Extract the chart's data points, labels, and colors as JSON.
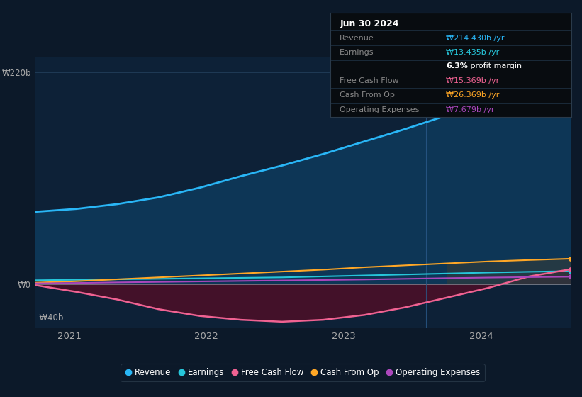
{
  "background_color": "#0c1929",
  "plot_bg_color": "#0d2137",
  "title": "Jun 30 2024",
  "ylabel_top": "₩220b",
  "ylabel_zero": "₩0",
  "ylabel_bottom": "-₩40b",
  "x_labels": [
    "2021",
    "2022",
    "2023",
    "2024"
  ],
  "x_ticks": [
    2021,
    2022,
    2023,
    2024
  ],
  "ylim": [
    -45,
    235
  ],
  "xlim": [
    2020.75,
    2024.65
  ],
  "colors": {
    "revenue": "#29b6f6",
    "earnings": "#26c6da",
    "free_cash_flow": "#f06292",
    "cash_from_op": "#ffa726",
    "operating_expenses": "#ab47bc"
  },
  "legend": [
    {
      "label": "Revenue",
      "color": "#29b6f6"
    },
    {
      "label": "Earnings",
      "color": "#26c6da"
    },
    {
      "label": "Free Cash Flow",
      "color": "#f06292"
    },
    {
      "label": "Cash From Op",
      "color": "#ffa726"
    },
    {
      "label": "Operating Expenses",
      "color": "#ab47bc"
    }
  ],
  "tooltip": {
    "date": "Jun 30 2024",
    "rows": [
      {
        "label": "Revenue",
        "value": "₩214.430b /yr",
        "color": "#29b6f6",
        "type": "normal"
      },
      {
        "label": "Earnings",
        "value": "₩13.435b /yr",
        "color": "#26c6da",
        "type": "normal"
      },
      {
        "label": "",
        "value": "6.3% profit margin",
        "color": "white",
        "type": "margin"
      },
      {
        "label": "Free Cash Flow",
        "value": "₩15.369b /yr",
        "color": "#f06292",
        "type": "normal"
      },
      {
        "label": "Cash From Op",
        "value": "₩26.369b /yr",
        "color": "#ffa726",
        "type": "normal"
      },
      {
        "label": "Operating Expenses",
        "value": "₩7.679b /yr",
        "color": "#ab47bc",
        "type": "normal"
      }
    ]
  },
  "revenue": [
    75,
    78,
    83,
    90,
    100,
    112,
    123,
    135,
    148,
    161,
    175,
    190,
    205,
    214.43
  ],
  "earnings": [
    4,
    4.5,
    5,
    5.5,
    6,
    6.5,
    7,
    8,
    9,
    10,
    11,
    12,
    12.8,
    13.435
  ],
  "free_cash_flow": [
    -1,
    -8,
    -16,
    -26,
    -33,
    -37,
    -39,
    -37,
    -32,
    -24,
    -14,
    -4,
    8,
    15.369
  ],
  "cash_from_op": [
    1.5,
    3,
    5,
    7,
    9,
    11,
    13,
    15,
    17.5,
    19.5,
    21.5,
    23.5,
    25,
    26.369
  ],
  "operating_expenses": [
    0.8,
    1.2,
    1.8,
    2.3,
    2.8,
    3.3,
    3.8,
    4.3,
    4.8,
    5.5,
    6.2,
    6.8,
    7.3,
    7.679
  ],
  "n_points": 14,
  "vline_x": 2023.6
}
